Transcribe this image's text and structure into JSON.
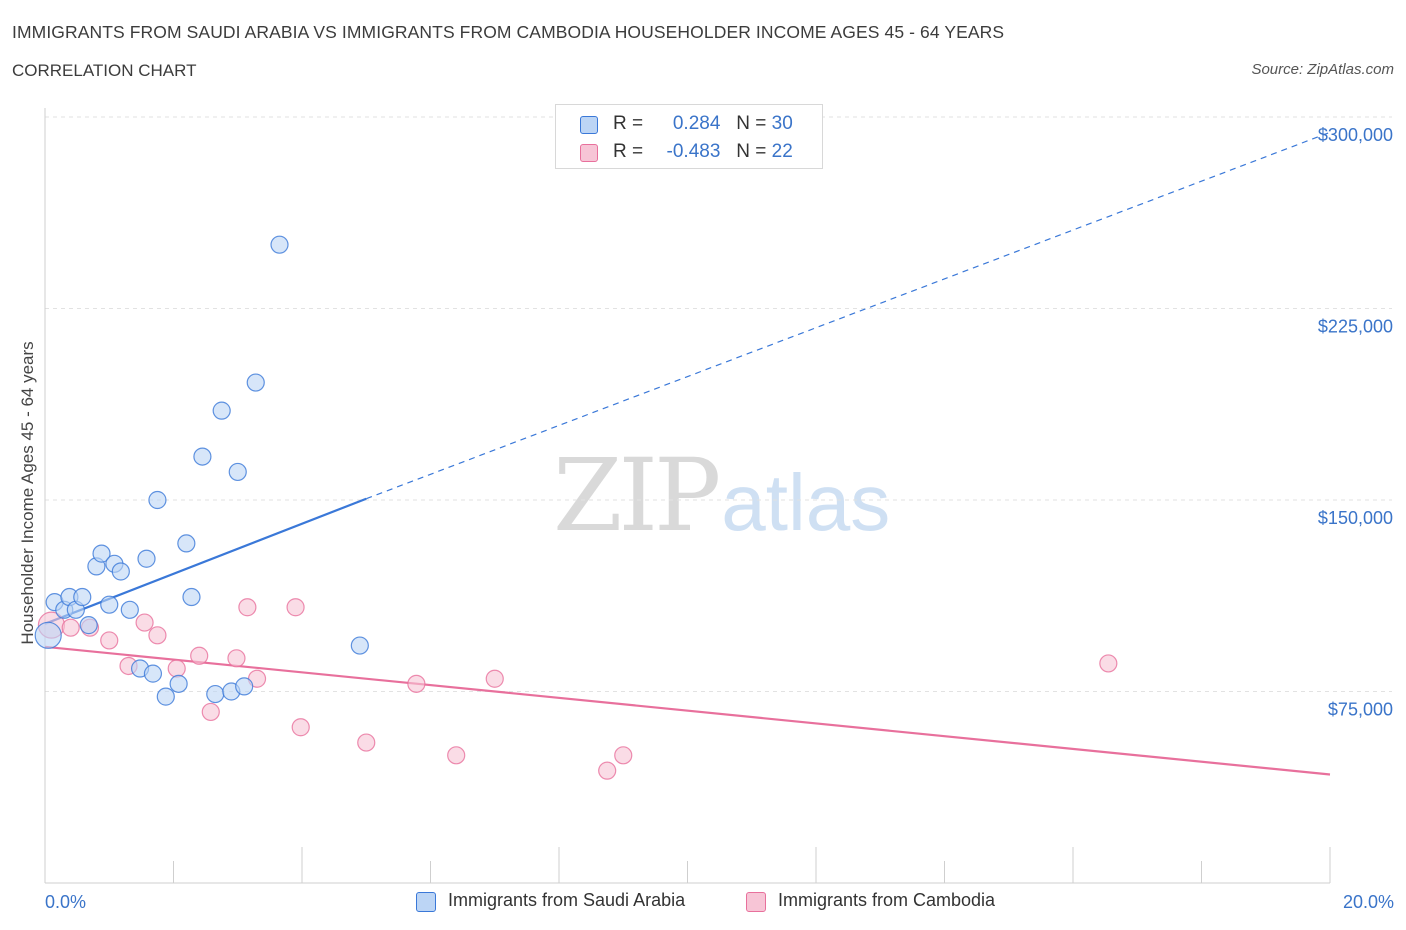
{
  "title": "IMMIGRANTS FROM SAUDI ARABIA VS IMMIGRANTS FROM CAMBODIA HOUSEHOLDER INCOME AGES 45 - 64 YEARS",
  "subtitle": "CORRELATION CHART",
  "source": "Source: ZipAtlas.com",
  "watermark": {
    "zip": "ZIP",
    "atlas": "atlas"
  },
  "colors": {
    "saudi": "#3a78d8",
    "saudi_fill": "#bcd5f5",
    "cambodia": "#e8709c",
    "cambodia_fill": "#f7c5d6",
    "grid": "#e2e2e2",
    "tick_label": "#3a74c9"
  },
  "legend": {
    "rows": [
      {
        "r_label": "R =",
        "r_value": "0.284",
        "n_label": "N =",
        "n_value": "30"
      },
      {
        "r_label": "R =",
        "r_value": "-0.483",
        "n_label": "N =",
        "n_value": "22"
      }
    ]
  },
  "chart_data": {
    "type": "scatter",
    "xlabel": "",
    "ylabel": "Householder Income Ages 45 - 64 years",
    "xlim": [
      0,
      20
    ],
    "ylim": [
      0,
      300000
    ],
    "x_tick_labels": [
      "0.0%",
      "20.0%"
    ],
    "y_ticks": [
      75000,
      150000,
      225000,
      300000
    ],
    "y_tick_labels": [
      "$75,000",
      "$150,000",
      "$225,000",
      "$300,000"
    ],
    "grid": true,
    "legend_position": "top-center",
    "series": [
      {
        "name": "Immigrants from Saudi Arabia",
        "points": [
          [
            0.05,
            97000
          ],
          [
            0.15,
            110000
          ],
          [
            0.3,
            107000
          ],
          [
            0.38,
            112000
          ],
          [
            0.48,
            107000
          ],
          [
            0.58,
            112000
          ],
          [
            0.68,
            101000
          ],
          [
            0.8,
            124000
          ],
          [
            0.88,
            129000
          ],
          [
            1.0,
            109000
          ],
          [
            1.08,
            125000
          ],
          [
            1.18,
            122000
          ],
          [
            1.32,
            107000
          ],
          [
            1.48,
            84000
          ],
          [
            1.58,
            127000
          ],
          [
            1.68,
            82000
          ],
          [
            1.75,
            150000
          ],
          [
            1.88,
            73000
          ],
          [
            2.08,
            78000
          ],
          [
            2.2,
            133000
          ],
          [
            2.28,
            112000
          ],
          [
            2.45,
            167000
          ],
          [
            2.65,
            74000
          ],
          [
            2.75,
            185000
          ],
          [
            2.9,
            75000
          ],
          [
            3.0,
            161000
          ],
          [
            3.1,
            77000
          ],
          [
            3.28,
            196000
          ],
          [
            3.65,
            250000
          ],
          [
            4.9,
            93000
          ]
        ],
        "trend": {
          "x": [
            0,
            5.0
          ],
          "y": [
            101500,
            150500
          ],
          "extended_to": [
            20,
            294000
          ]
        }
      },
      {
        "name": "Immigrants from Cambodia",
        "points": [
          [
            0.1,
            101000
          ],
          [
            0.4,
            100000
          ],
          [
            0.7,
            100000
          ],
          [
            1.0,
            95000
          ],
          [
            1.3,
            85000
          ],
          [
            1.55,
            102000
          ],
          [
            1.75,
            97000
          ],
          [
            2.05,
            84000
          ],
          [
            2.4,
            89000
          ],
          [
            2.58,
            67000
          ],
          [
            2.98,
            88000
          ],
          [
            3.15,
            108000
          ],
          [
            3.3,
            80000
          ],
          [
            3.9,
            108000
          ],
          [
            3.98,
            61000
          ],
          [
            5.0,
            55000
          ],
          [
            5.78,
            78000
          ],
          [
            6.4,
            50000
          ],
          [
            7.0,
            80000
          ],
          [
            8.75,
            44000
          ],
          [
            9.0,
            50000
          ],
          [
            16.55,
            86000
          ]
        ],
        "trend": {
          "x": [
            0,
            20
          ],
          "y": [
            92500,
            42500
          ]
        }
      }
    ]
  }
}
